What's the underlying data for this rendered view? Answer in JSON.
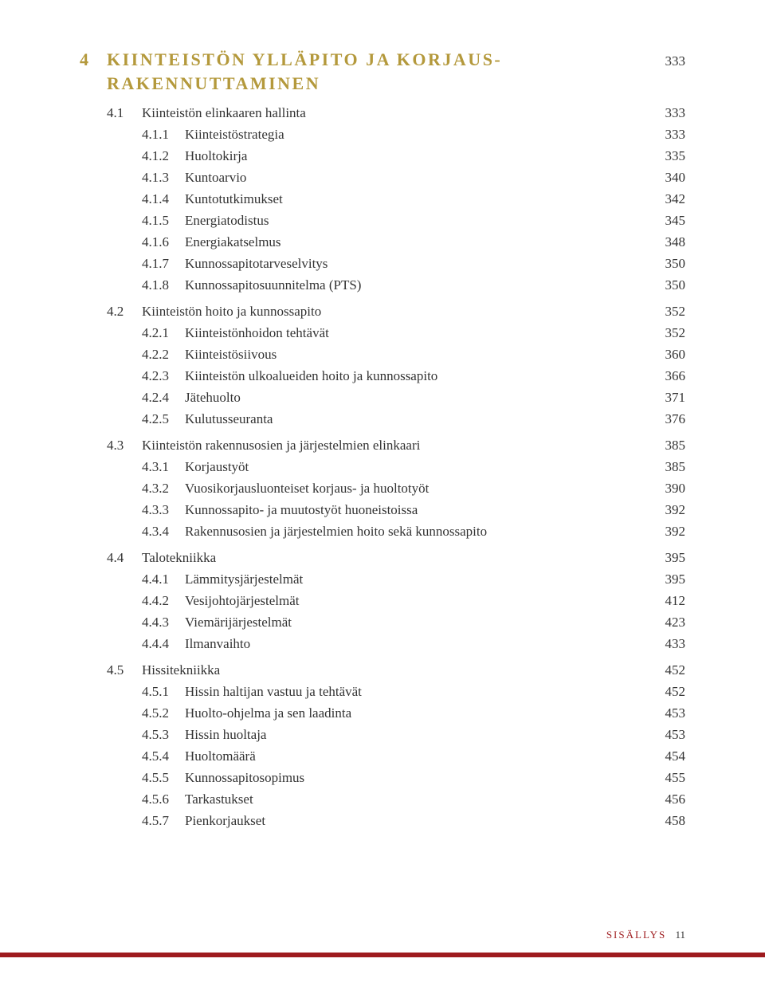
{
  "chapter": {
    "num": "4",
    "title_line1": "KIINTEISTÖN YLLÄPITO JA KORJAUS-",
    "title_line2": "RAKENNUTTAMINEN",
    "page": "333"
  },
  "sections": [
    {
      "num": "4.1",
      "title": "Kiinteistön elinkaaren hallinta",
      "page": "333",
      "subs": [
        {
          "num": "4.1.1",
          "title": "Kiinteistöstrategia",
          "page": "333"
        },
        {
          "num": "4.1.2",
          "title": "Huoltokirja",
          "page": "335"
        },
        {
          "num": "4.1.3",
          "title": "Kuntoarvio",
          "page": "340"
        },
        {
          "num": "4.1.4",
          "title": "Kuntotutkimukset",
          "page": "342"
        },
        {
          "num": "4.1.5",
          "title": "Energiatodistus",
          "page": "345"
        },
        {
          "num": "4.1.6",
          "title": "Energiakatselmus",
          "page": "348"
        },
        {
          "num": "4.1.7",
          "title": "Kunnossapitotarveselvitys",
          "page": "350"
        },
        {
          "num": "4.1.8",
          "title": "Kunnossapitosuunnitelma (PTS)",
          "page": "350"
        }
      ]
    },
    {
      "num": "4.2",
      "title": "Kiinteistön hoito ja kunnossapito",
      "page": "352",
      "subs": [
        {
          "num": "4.2.1",
          "title": "Kiinteistönhoidon tehtävät",
          "page": "352"
        },
        {
          "num": "4.2.2",
          "title": "Kiinteistösiivous",
          "page": "360"
        },
        {
          "num": "4.2.3",
          "title": "Kiinteistön ulkoalueiden hoito ja kunnossapito",
          "page": "366"
        },
        {
          "num": "4.2.4",
          "title": "Jätehuolto",
          "page": "371"
        },
        {
          "num": "4.2.5",
          "title": "Kulutusseuranta",
          "page": "376"
        }
      ]
    },
    {
      "num": "4.3",
      "title": "Kiinteistön rakennusosien ja järjestelmien elinkaari",
      "page": "385",
      "subs": [
        {
          "num": "4.3.1",
          "title": "Korjaustyöt",
          "page": "385"
        },
        {
          "num": "4.3.2",
          "title": "Vuosikorjausluonteiset korjaus- ja huoltotyöt",
          "page": "390"
        },
        {
          "num": "4.3.3",
          "title": "Kunnossapito- ja muutostyöt huoneistoissa",
          "page": "392"
        },
        {
          "num": "4.3.4",
          "title": "Rakennusosien ja järjestelmien hoito sekä kunnossapito",
          "page": "392"
        }
      ]
    },
    {
      "num": "4.4",
      "title": "Talotekniikka",
      "page": "395",
      "subs": [
        {
          "num": "4.4.1",
          "title": "Lämmitysjärjestelmät",
          "page": "395"
        },
        {
          "num": "4.4.2",
          "title": "Vesijohtojärjestelmät",
          "page": "412"
        },
        {
          "num": "4.4.3",
          "title": "Viemärijärjestelmät",
          "page": "423"
        },
        {
          "num": "4.4.4",
          "title": "Ilmanvaihto",
          "page": "433"
        }
      ]
    },
    {
      "num": "4.5",
      "title": "Hissitekniikka",
      "page": "452",
      "subs": [
        {
          "num": "4.5.1",
          "title": "Hissin haltijan vastuu ja tehtävät",
          "page": "452"
        },
        {
          "num": "4.5.2",
          "title": "Huolto-ohjelma ja sen laadinta",
          "page": "453"
        },
        {
          "num": "4.5.3",
          "title": "Hissin huoltaja",
          "page": "453"
        },
        {
          "num": "4.5.4",
          "title": "Huoltomäärä",
          "page": "454"
        },
        {
          "num": "4.5.5",
          "title": "Kunnossapitosopimus",
          "page": "455"
        },
        {
          "num": "4.5.6",
          "title": "Tarkastukset",
          "page": "456"
        },
        {
          "num": "4.5.7",
          "title": "Pienkorjaukset",
          "page": "458"
        }
      ]
    }
  ],
  "footer": {
    "label": "SISÄLLYS",
    "page": "11"
  },
  "colors": {
    "accent": "#b4993c",
    "text": "#333333",
    "bar": "#9e1b1e",
    "background": "#ffffff"
  }
}
